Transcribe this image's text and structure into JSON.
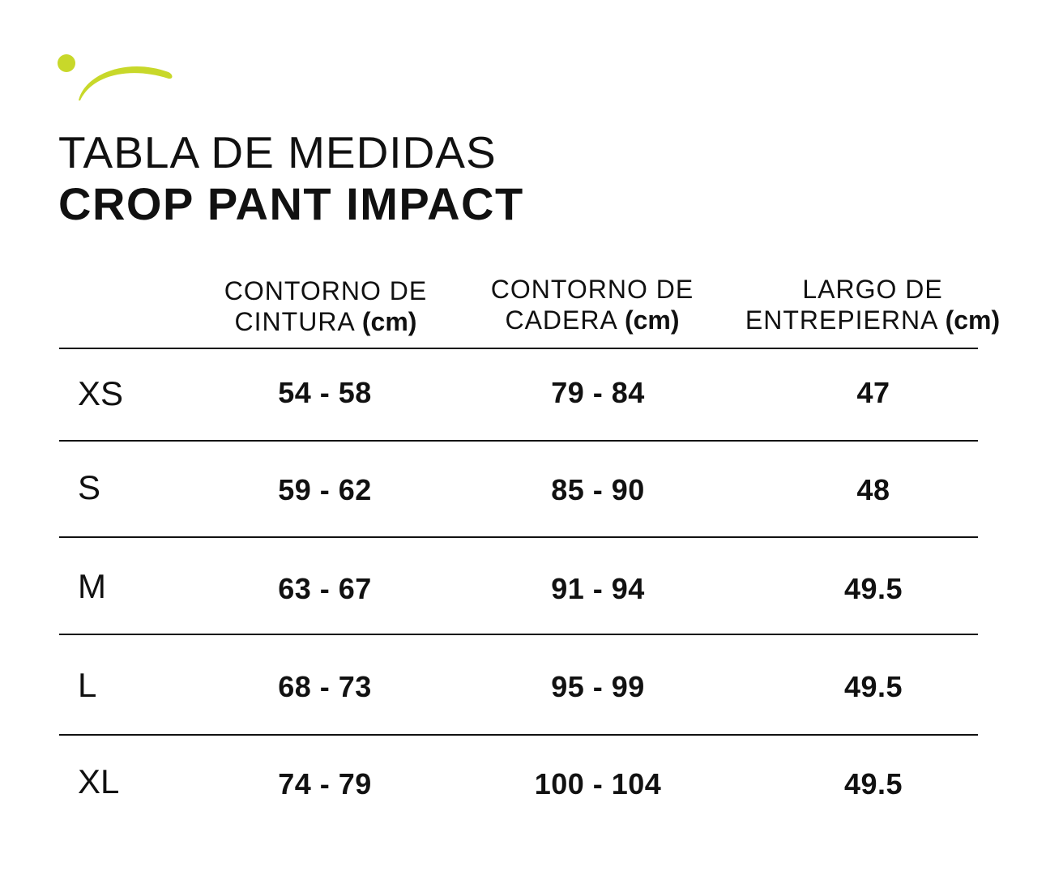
{
  "brand": {
    "accent_color": "#c8d82a",
    "logo_icon": "brand-swoosh-icon"
  },
  "title": {
    "line1": "TABLA DE MEDIDAS",
    "line2": "CROP PANT IMPACT"
  },
  "table": {
    "columns": [
      {
        "line1": "CONTORNO DE",
        "line2": "CINTURA",
        "unit": "(cm)"
      },
      {
        "line1": "CONTORNO DE",
        "line2": "CADERA",
        "unit": "(cm)"
      },
      {
        "line1": "LARGO DE",
        "line2": "ENTREPIERNA",
        "unit": "(cm)"
      }
    ],
    "rows": [
      {
        "size": "XS",
        "values": [
          "54 - 58",
          "79 - 84",
          "47"
        ]
      },
      {
        "size": "S",
        "values": [
          "59 - 62",
          "85 - 90",
          "48"
        ]
      },
      {
        "size": "M",
        "values": [
          "63 - 67",
          "91 - 94",
          "49.5"
        ]
      },
      {
        "size": "L",
        "values": [
          "68 - 73",
          "95 - 99",
          "49.5"
        ]
      },
      {
        "size": "XL",
        "values": [
          "74 - 79",
          "100 - 104",
          "49.5"
        ]
      }
    ]
  }
}
